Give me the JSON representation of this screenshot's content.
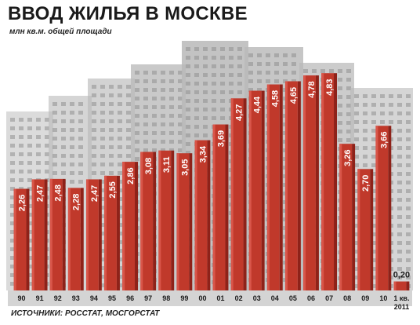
{
  "title": "ВВОД ЖИЛЬЯ В МОСКВЕ",
  "subtitle": "млн кв.м. общей площади",
  "source": "ИСТОЧНИКИ: РОССТАТ, МОСГОРСТАТ",
  "colors": {
    "bar": "#c0392b",
    "bar_dark": "#8e2219",
    "bar_light": "#d9564a",
    "axis_band": "#d4d4d4",
    "building": "#b9b9b9"
  },
  "chart_data": {
    "type": "bar",
    "categories": [
      "90",
      "91",
      "92",
      "93",
      "94",
      "95",
      "96",
      "97",
      "98",
      "99",
      "00",
      "01",
      "02",
      "03",
      "04",
      "05",
      "06",
      "07",
      "08",
      "09",
      "10",
      "1 кв.\n2011"
    ],
    "values": [
      2.26,
      2.47,
      2.48,
      2.28,
      2.47,
      2.55,
      2.86,
      3.08,
      3.11,
      3.05,
      3.34,
      3.69,
      4.27,
      4.44,
      4.58,
      4.65,
      4.78,
      4.83,
      3.26,
      2.7,
      3.66,
      0.2
    ],
    "value_labels": [
      "2,26",
      "2,47",
      "2,48",
      "2,28",
      "2,47",
      "2,55",
      "2,86",
      "3,08",
      "3,11",
      "3,05",
      "3,34",
      "3,69",
      "4,27",
      "4,44",
      "4,58",
      "4,65",
      "4,78",
      "4,83",
      "3,26",
      "2,70",
      "3,66",
      "0,20"
    ],
    "ylim": [
      0,
      5.2
    ],
    "grid": false,
    "legend": "none"
  }
}
